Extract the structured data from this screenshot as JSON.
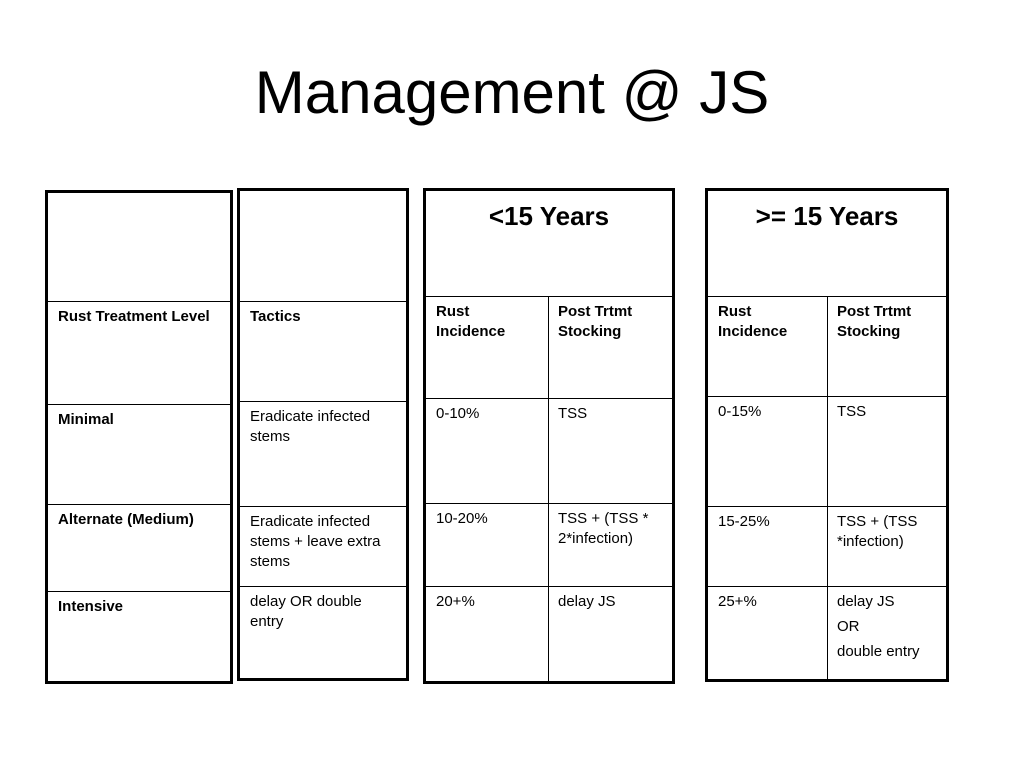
{
  "title": "Management @ JS",
  "tables": [
    {
      "rows": [
        "Rust Treatment Level",
        "Minimal",
        "Alternate (Medium)",
        "Intensive"
      ]
    },
    {
      "rows": [
        "Tactics",
        "Eradicate infected stems",
        "Eradicate infected stems + leave extra stems",
        "delay OR double entry"
      ]
    },
    {
      "header": "<15 Years",
      "rows": [
        [
          "Rust Incidence",
          "Post Trtmt Stocking"
        ],
        [
          "0-10%",
          "TSS"
        ],
        [
          "10-20%",
          "TSS + (TSS * 2*infection)"
        ],
        [
          "20+%",
          "delay JS"
        ]
      ]
    },
    {
      "header": ">= 15 Years",
      "rows": [
        [
          "Rust Incidence",
          "Post Trtmt Stocking"
        ],
        [
          "0-15%",
          "TSS"
        ],
        [
          "15-25%",
          "TSS + (TSS *infection)"
        ],
        [
          "25+%",
          [
            "delay JS",
            "OR",
            "double entry"
          ]
        ]
      ]
    }
  ]
}
